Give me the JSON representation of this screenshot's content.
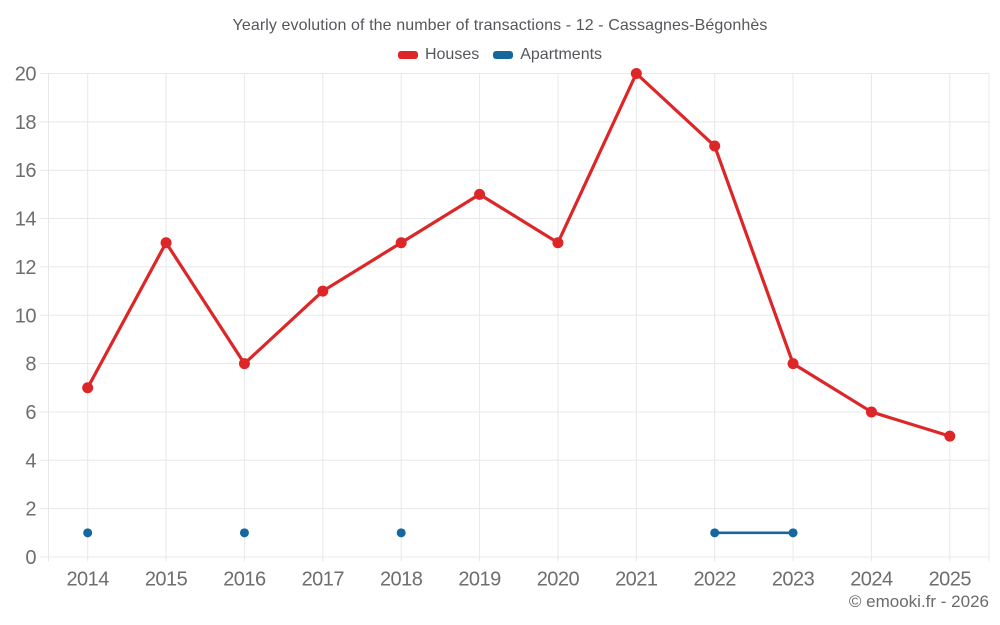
{
  "chart_data": {
    "type": "line",
    "title": "Yearly evolution of the number of transactions - 12 - Cassagnes-Bégonhès",
    "categories": [
      "2014",
      "2015",
      "2016",
      "2017",
      "2018",
      "2019",
      "2020",
      "2021",
      "2022",
      "2023",
      "2024",
      "2025"
    ],
    "series": [
      {
        "name": "Houses",
        "color": "#dc2628",
        "line_width": 3.2,
        "marker_radius": 5.5,
        "values": [
          7,
          13,
          8,
          11,
          13,
          15,
          13,
          20,
          17,
          8,
          6,
          5
        ]
      },
      {
        "name": "Apartments",
        "color": "#15679e",
        "line_width": 2.6,
        "marker_radius": 4.5,
        "values": [
          1,
          null,
          1,
          null,
          1,
          null,
          null,
          null,
          1,
          1,
          null,
          null
        ]
      }
    ],
    "xlabel": "",
    "ylabel": "",
    "ylim": [
      0,
      20
    ],
    "ytick_step": 2,
    "grid": true,
    "legend_position": "top"
  },
  "footer": {
    "copyright": "© emooki.fr - 2026"
  },
  "colors": {
    "background": "#ffffff",
    "grid": "#e8e8e8",
    "axis_text": "#6e6e6e",
    "title_text": "#56575b",
    "footer_text": "#6b6b6b",
    "houses": "#dc2628",
    "apartments": "#15679e"
  }
}
